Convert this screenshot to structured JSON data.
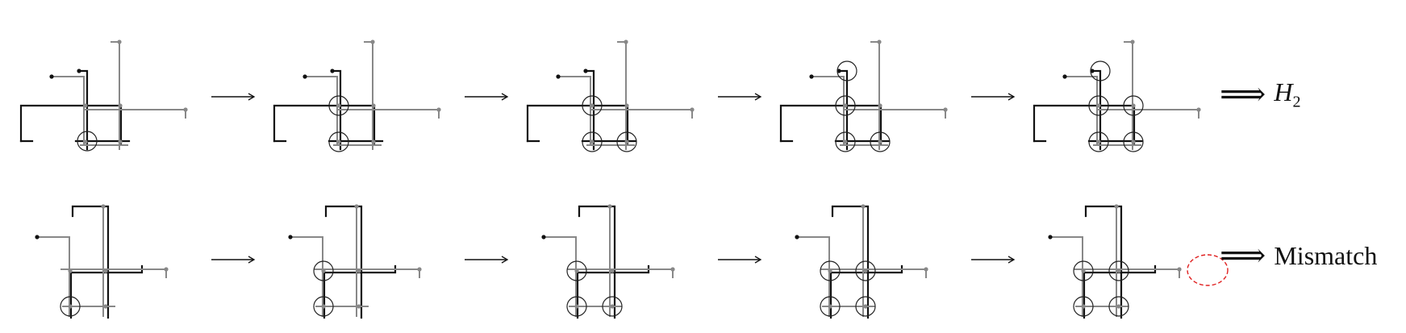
{
  "rows": [
    {
      "result": {
        "symbol": "⟹",
        "label": "H",
        "subscript": "2",
        "italic": true
      },
      "step_count": 5
    },
    {
      "result": {
        "symbol": "⟹",
        "label": "Mismatch",
        "subscript": "",
        "italic": false
      },
      "step_count": 5
    }
  ],
  "colors": {
    "black_path": "#111111",
    "gray_path": "#888888",
    "circle": "#222222",
    "mismatch_marker": "#e02020"
  }
}
